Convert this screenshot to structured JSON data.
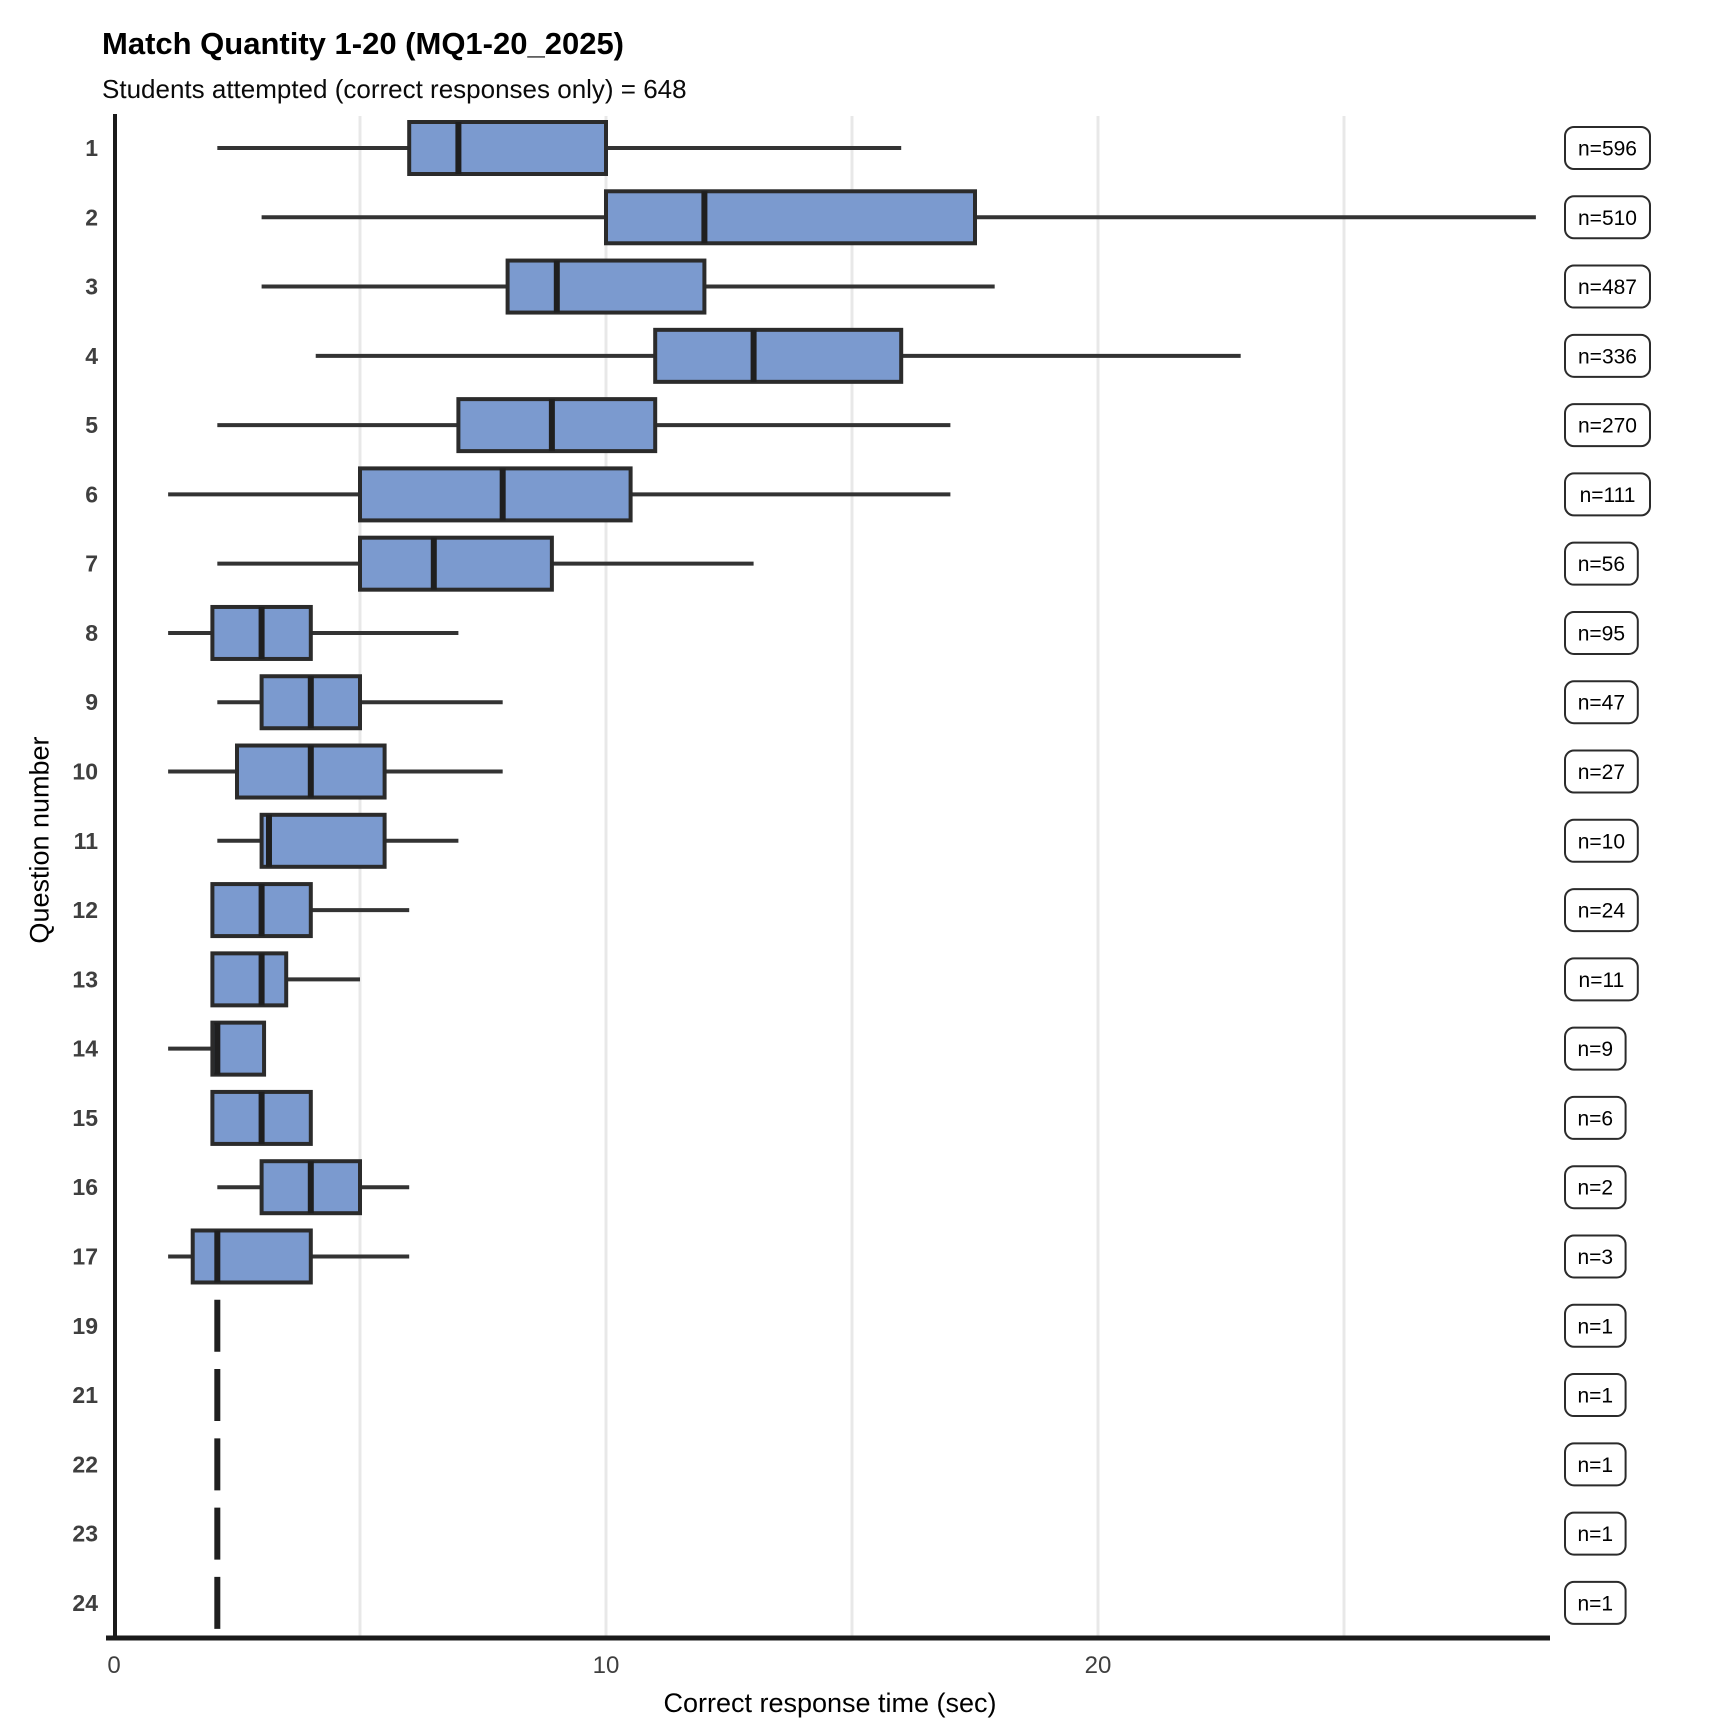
{
  "header": {
    "title": "Match Quantity 1-20 (MQ1-20_2025)",
    "subtitle": "Students attempted (correct responses only) = 648"
  },
  "chart_data": {
    "type": "boxplot",
    "orientation": "horizontal",
    "title": "Match Quantity 1-20 (MQ1-20_2025)",
    "subtitle": "Students attempted (correct responses only) = 648",
    "xlabel": "Correct response time (sec)",
    "ylabel": "Question number",
    "xlim": [
      0,
      29
    ],
    "xticks": [
      0,
      10,
      20
    ],
    "grid_x": [
      5,
      10,
      15,
      20,
      25
    ],
    "grid_on": true,
    "legend": "none",
    "colors": {
      "box_fill": "#7b9acf",
      "box_stroke": "#2b2b2b",
      "whisker": "#333333",
      "median": "#1f1f1f",
      "grid": "#e8e8e8",
      "axis": "#1a1a1a",
      "tick_label": "#3f3f3f",
      "label_box_border": "#2b2b2b",
      "label_text": "#000000"
    },
    "rows": [
      {
        "question": "1",
        "n": 596,
        "n_label": "n=596",
        "whisker_min": 2.1,
        "q1": 6.0,
        "median": 7.0,
        "q3": 10.0,
        "whisker_max": 16.0
      },
      {
        "question": "2",
        "n": 510,
        "n_label": "n=510",
        "whisker_min": 3.0,
        "q1": 10.0,
        "median": 12.0,
        "q3": 17.5,
        "whisker_max": 28.9
      },
      {
        "question": "3",
        "n": 487,
        "n_label": "n=487",
        "whisker_min": 3.0,
        "q1": 8.0,
        "median": 9.0,
        "q3": 12.0,
        "whisker_max": 17.9
      },
      {
        "question": "4",
        "n": 336,
        "n_label": "n=336",
        "whisker_min": 4.1,
        "q1": 11.0,
        "median": 13.0,
        "q3": 16.0,
        "whisker_max": 22.9
      },
      {
        "question": "5",
        "n": 270,
        "n_label": "n=270",
        "whisker_min": 2.1,
        "q1": 7.0,
        "median": 8.9,
        "q3": 11.0,
        "whisker_max": 17.0
      },
      {
        "question": "6",
        "n": 111,
        "n_label": "n=111",
        "whisker_min": 1.1,
        "q1": 5.0,
        "median": 7.9,
        "q3": 10.5,
        "whisker_max": 17.0
      },
      {
        "question": "7",
        "n": 56,
        "n_label": "n=56",
        "whisker_min": 2.1,
        "q1": 5.0,
        "median": 6.5,
        "q3": 8.9,
        "whisker_max": 13.0
      },
      {
        "question": "8",
        "n": 95,
        "n_label": "n=95",
        "whisker_min": 1.1,
        "q1": 2.0,
        "median": 3.0,
        "q3": 4.0,
        "whisker_max": 7.0
      },
      {
        "question": "9",
        "n": 47,
        "n_label": "n=47",
        "whisker_min": 2.1,
        "q1": 3.0,
        "median": 4.0,
        "q3": 5.0,
        "whisker_max": 7.9
      },
      {
        "question": "10",
        "n": 27,
        "n_label": "n=27",
        "whisker_min": 1.1,
        "q1": 2.5,
        "median": 4.0,
        "q3": 5.5,
        "whisker_max": 7.9
      },
      {
        "question": "11",
        "n": 10,
        "n_label": "n=10",
        "whisker_min": 2.1,
        "q1": 3.0,
        "median": 3.15,
        "q3": 5.5,
        "whisker_max": 7.0
      },
      {
        "question": "12",
        "n": 24,
        "n_label": "n=24",
        "whisker_min": 2.0,
        "q1": 2.0,
        "median": 3.0,
        "q3": 4.0,
        "whisker_max": 6.0
      },
      {
        "question": "13",
        "n": 11,
        "n_label": "n=11",
        "whisker_min": 2.0,
        "q1": 2.0,
        "median": 3.0,
        "q3": 3.5,
        "whisker_max": 5.0
      },
      {
        "question": "14",
        "n": 9,
        "n_label": "n=9",
        "whisker_min": 1.1,
        "q1": 2.0,
        "median": 2.1,
        "q3": 3.05,
        "whisker_max": 3.05
      },
      {
        "question": "15",
        "n": 6,
        "n_label": "n=6",
        "whisker_min": 2.0,
        "q1": 2.0,
        "median": 3.0,
        "q3": 4.0,
        "whisker_max": 4.0
      },
      {
        "question": "16",
        "n": 2,
        "n_label": "n=2",
        "whisker_min": 2.1,
        "q1": 3.0,
        "median": 4.0,
        "q3": 5.0,
        "whisker_max": 6.0
      },
      {
        "question": "17",
        "n": 3,
        "n_label": "n=3",
        "whisker_min": 1.1,
        "q1": 1.6,
        "median": 2.1,
        "q3": 4.0,
        "whisker_max": 6.0
      },
      {
        "question": "19",
        "n": 1,
        "n_label": "n=1",
        "whisker_min": 2.1,
        "q1": 2.1,
        "median": 2.1,
        "q3": 2.1,
        "whisker_max": 2.1
      },
      {
        "question": "21",
        "n": 1,
        "n_label": "n=1",
        "whisker_min": 2.1,
        "q1": 2.1,
        "median": 2.1,
        "q3": 2.1,
        "whisker_max": 2.1
      },
      {
        "question": "22",
        "n": 1,
        "n_label": "n=1",
        "whisker_min": 2.1,
        "q1": 2.1,
        "median": 2.1,
        "q3": 2.1,
        "whisker_max": 2.1
      },
      {
        "question": "23",
        "n": 1,
        "n_label": "n=1",
        "whisker_min": 2.1,
        "q1": 2.1,
        "median": 2.1,
        "q3": 2.1,
        "whisker_max": 2.1
      },
      {
        "question": "24",
        "n": 1,
        "n_label": "n=1",
        "whisker_min": 2.1,
        "q1": 2.1,
        "median": 2.1,
        "q3": 2.1,
        "whisker_max": 2.1
      }
    ]
  }
}
